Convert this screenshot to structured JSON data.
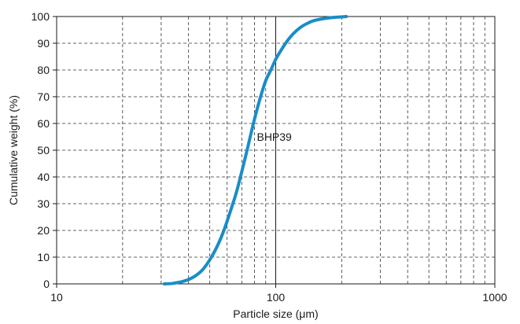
{
  "chart_data": {
    "type": "line",
    "xscale": "log",
    "xlim": [
      10,
      1000
    ],
    "ylim": [
      0,
      100
    ],
    "xlabel": "Particle size (μm)",
    "ylabel": "Cumulative weight (%)",
    "xticks": [
      10,
      100,
      1000
    ],
    "xtick_labels": [
      "10",
      "100",
      "1000"
    ],
    "xminor": [
      20,
      30,
      40,
      50,
      60,
      70,
      80,
      90,
      200,
      300,
      400,
      500,
      600,
      700,
      800,
      900
    ],
    "yticks": [
      0,
      10,
      20,
      30,
      40,
      50,
      60,
      70,
      80,
      90,
      100
    ],
    "ytick_labels": [
      "0",
      "10",
      "20",
      "30",
      "40",
      "50",
      "60",
      "70",
      "80",
      "90",
      "100"
    ],
    "grid": "dashed",
    "series": [
      {
        "name": "BHP39",
        "color": "#1a8cc8",
        "x": [
          31,
          34,
          38,
          42,
          46,
          50,
          54,
          58,
          62,
          66,
          70,
          74,
          78,
          82,
          86,
          90,
          95,
          100,
          106,
          112,
          120,
          130,
          140,
          150,
          165,
          180,
          195,
          210
        ],
        "y": [
          0,
          0.2,
          1,
          2.5,
          5,
          9,
          14,
          20,
          27,
          34,
          42,
          50,
          58,
          65,
          71,
          76,
          80,
          84,
          87.5,
          90.5,
          93.5,
          96,
          97.5,
          98.5,
          99.2,
          99.6,
          99.8,
          100
        ]
      }
    ],
    "annotations": [
      {
        "text": "BHP39",
        "x": 82,
        "y": 55
      }
    ]
  }
}
